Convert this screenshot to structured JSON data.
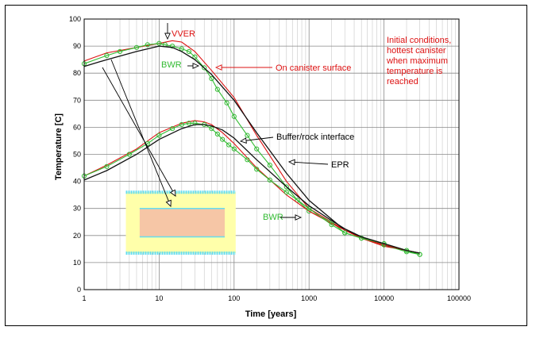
{
  "chart_data": {
    "type": "line",
    "xlabel": "Time [years]",
    "ylabel": "Temperature [C]",
    "xscale": "log",
    "xlim": [
      1,
      100000
    ],
    "ylim": [
      0,
      100
    ],
    "grid": true,
    "x_ticks": [
      "1",
      "10",
      "100",
      "1000",
      "10000",
      "100000"
    ],
    "y_ticks": [
      "0",
      "10",
      "20",
      "30",
      "40",
      "50",
      "60",
      "70",
      "80",
      "90",
      "100"
    ],
    "annotations": {
      "vver": "VVER",
      "bwr_top": "BWR",
      "canister_surface": "On canister surface",
      "initial_conditions": [
        "Initial conditions,",
        "hottest canister",
        "when maximum",
        "temperature is",
        "reached"
      ],
      "buffer_rock": "Buffer/rock interface",
      "epr": "EPR",
      "bwr_bottom": "BWR"
    },
    "colors": {
      "vver": "#dd1111",
      "bwr": "#33bb33",
      "epr": "#111111",
      "annotation_red": "#dd1111",
      "annotation_green": "#33bb33",
      "buffer": "#ffffaa",
      "buffer_edge": "#66ddee",
      "canister": "#f6c6a6"
    },
    "series": [
      {
        "name": "VVER",
        "group": "canister",
        "x": [
          1,
          2,
          5,
          10,
          15,
          20,
          30,
          50,
          100,
          200,
          500,
          1000,
          2000,
          3000,
          5000,
          10000,
          20000,
          30000
        ],
        "y": [
          84.5,
          87.5,
          89.5,
          91,
          92,
          91.5,
          88,
          81,
          71,
          57,
          40,
          30,
          25,
          22,
          19,
          16,
          14.5,
          13.5
        ]
      },
      {
        "name": "BWR",
        "group": "canister",
        "x": [
          1,
          2,
          3,
          5,
          7,
          10,
          12,
          15,
          20,
          25,
          30,
          40,
          50,
          60,
          80,
          100,
          150,
          200,
          300,
          500,
          700,
          1000,
          2000,
          3000,
          5000,
          10000,
          20000,
          30000
        ],
        "y": [
          83.5,
          86.5,
          88,
          89.5,
          90.5,
          91,
          90.5,
          90,
          89,
          88,
          86,
          82,
          78,
          74,
          69,
          64,
          57,
          52,
          46,
          38,
          33,
          29,
          25,
          21,
          19,
          16.5,
          14,
          13
        ]
      },
      {
        "name": "EPR",
        "group": "canister",
        "x": [
          1,
          2,
          5,
          10,
          15,
          20,
          30,
          50,
          100,
          200,
          500,
          1000,
          2000,
          3000,
          5000,
          10000,
          20000,
          30000
        ],
        "y": [
          82.5,
          85,
          88,
          90,
          89.5,
          88,
          85,
          79.5,
          70,
          58,
          43,
          33,
          26,
          22,
          19.5,
          16.5,
          14.5,
          13.5
        ]
      },
      {
        "name": "VVER",
        "group": "buffer",
        "x": [
          1,
          2,
          5,
          10,
          20,
          30,
          40,
          50,
          70,
          100,
          200,
          500,
          1000,
          2000,
          3000,
          5000,
          10000,
          20000,
          30000
        ],
        "y": [
          42,
          46,
          52,
          58,
          61.5,
          62.5,
          62,
          61,
          58,
          54,
          45,
          35,
          29,
          24.5,
          22,
          19,
          16.5,
          14.5,
          13.5
        ]
      },
      {
        "name": "BWR",
        "group": "buffer",
        "x": [
          1,
          2,
          4,
          7,
          10,
          15,
          20,
          25,
          30,
          40,
          50,
          60,
          70,
          85,
          100,
          150,
          200,
          300,
          500,
          1000,
          2000,
          3000,
          5000,
          10000,
          20000,
          30000
        ],
        "y": [
          42,
          45.5,
          50,
          54,
          57,
          59.5,
          61,
          61.5,
          61.5,
          61,
          59.5,
          57.5,
          55.5,
          53.5,
          52,
          48,
          44.5,
          40.5,
          36,
          30,
          24,
          21,
          19,
          17,
          14.5,
          13
        ]
      },
      {
        "name": "EPR",
        "group": "buffer",
        "x": [
          1,
          2,
          5,
          10,
          20,
          30,
          40,
          50,
          70,
          100,
          200,
          500,
          1000,
          2000,
          3000,
          5000,
          10000,
          20000,
          30000
        ],
        "y": [
          40.5,
          44,
          50,
          55.5,
          59.5,
          61,
          61,
          60.5,
          59,
          56,
          48,
          38,
          31,
          25.5,
          22.5,
          19.5,
          17,
          14.5,
          13.5
        ]
      }
    ]
  }
}
